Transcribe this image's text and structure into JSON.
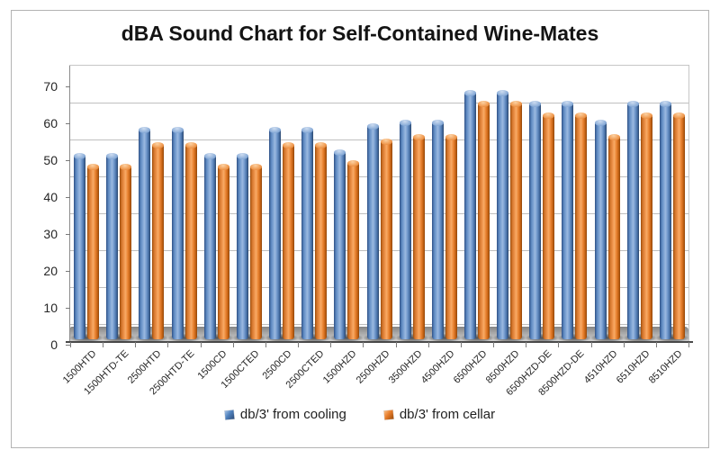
{
  "page": {
    "background": "#ffffff",
    "frame_border_color": "#b3b3b3"
  },
  "chart_data": {
    "type": "bar",
    "style": "3d-cylinder",
    "title": "dBA Sound Chart for Self-Contained Wine-Mates",
    "categories": [
      "1500HTD",
      "1500HTD-TE",
      "2500HTD",
      "2500HTD-TE",
      "1500CD",
      "1500CTED",
      "2500CD",
      "2500CTED",
      "1500HZD",
      "2500HZD",
      "3500HZD",
      "4500HZD",
      "6500HZD",
      "8500HZD",
      "6500HZD-DE",
      "8500HZD-DE",
      "4510HZD",
      "6510HZD",
      "8510HZD"
    ],
    "series": [
      {
        "name": "db/3' from cooling",
        "color": "#4F81BD",
        "values": [
          51,
          51,
          58,
          58,
          51,
          51,
          58,
          58,
          52,
          59,
          60,
          60,
          68,
          68,
          65,
          65,
          60,
          65,
          65
        ]
      },
      {
        "name": "db/3' from cellar",
        "color": "#E87E2C",
        "values": [
          48,
          48,
          54,
          54,
          48,
          48,
          54,
          54,
          49,
          55,
          56,
          56,
          65,
          65,
          62,
          62,
          56,
          62,
          62
        ]
      }
    ],
    "xlabel": "",
    "ylabel": "",
    "ylim": [
      0,
      75
    ],
    "yticks": [
      0,
      10,
      20,
      30,
      40,
      50,
      60,
      70
    ],
    "grid": true,
    "legend_position": "bottom"
  }
}
